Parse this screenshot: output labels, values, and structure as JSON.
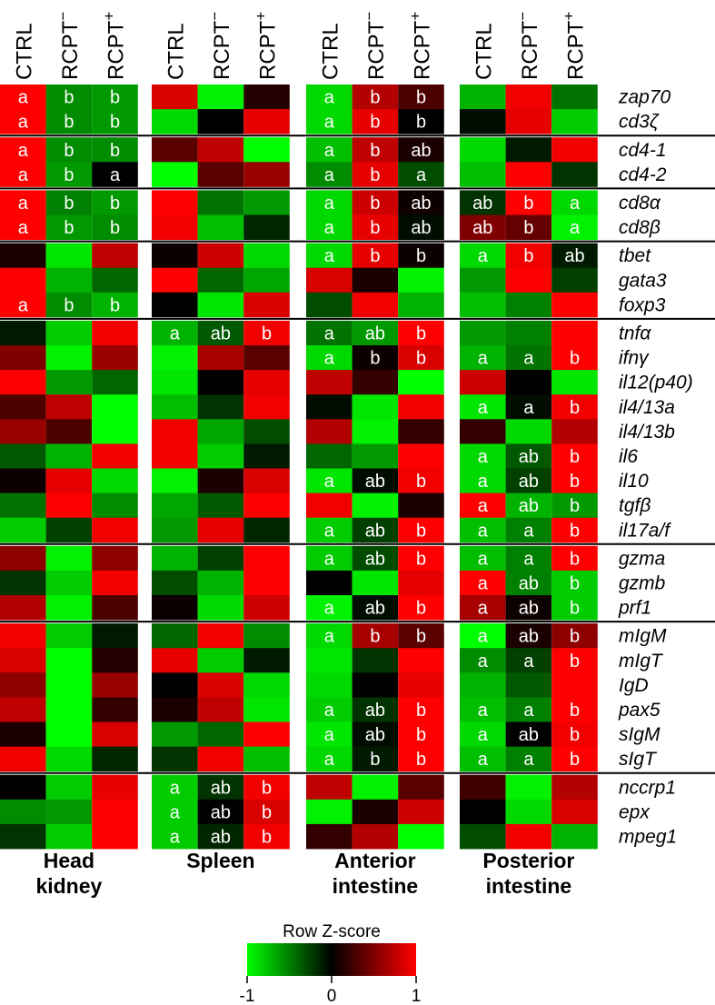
{
  "chart_data": {
    "type": "heatmap",
    "title": "",
    "columns": [
      "CTRL",
      "RCPT-",
      "RCPT+"
    ],
    "column_labels": [
      {
        "text": "CTRL",
        "sup": ""
      },
      {
        "text": "RCPT",
        "sup": "−"
      },
      {
        "text": "RCPT",
        "sup": "+"
      }
    ],
    "tissues": [
      "Head kidney",
      "Spleen",
      "Anterior intestine",
      "Posterior intestine"
    ],
    "tissue_labels": [
      [
        "Head",
        "kidney"
      ],
      [
        "Spleen"
      ],
      [
        "Anterior",
        "intestine"
      ],
      [
        "Posterior",
        "intestine"
      ]
    ],
    "genes": [
      "zap70",
      "cd3ζ",
      "cd4-1",
      "cd4-2",
      "cd8α",
      "cd8β",
      "tbet",
      "gata3",
      "foxp3",
      "tnfα",
      "ifnγ",
      "il12(p40)",
      "il4/13a",
      "il4/13b",
      "il6",
      "il10",
      "tgfβ",
      "il17a/f",
      "gzma",
      "gzmb",
      "prf1",
      "mIgM",
      "mIgT",
      "IgD",
      "pax5",
      "sIgM",
      "sIgT",
      "nccrp1",
      "epx",
      "mpeg1"
    ],
    "groups": [
      2,
      2,
      2,
      3,
      9,
      3,
      6,
      3
    ],
    "zscores": {
      "Head kidney": [
        [
          1,
          -0.55,
          -0.6
        ],
        [
          1,
          -0.55,
          -0.6
        ],
        [
          1,
          -0.55,
          -0.55
        ],
        [
          1,
          -0.6,
          0
        ],
        [
          1,
          -0.5,
          -0.6
        ],
        [
          1,
          -0.6,
          -0.55
        ],
        [
          0.1,
          -0.9,
          0.75
        ],
        [
          1,
          -0.7,
          -0.4
        ],
        [
          1,
          -0.55,
          -0.7
        ],
        [
          -0.1,
          -0.8,
          0.95
        ],
        [
          0.5,
          -0.95,
          0.6
        ],
        [
          1,
          -0.6,
          -0.4
        ],
        [
          0.3,
          0.75,
          -1
        ],
        [
          0.6,
          0.3,
          -1
        ],
        [
          -0.35,
          -0.7,
          0.95
        ],
        [
          0.05,
          0.9,
          -0.85
        ],
        [
          -0.45,
          1,
          -0.55
        ],
        [
          -0.8,
          -0.25,
          0.95
        ],
        [
          0.55,
          -0.95,
          0.55
        ],
        [
          -0.2,
          -0.8,
          0.95
        ],
        [
          0.7,
          -0.95,
          0.3
        ],
        [
          0.95,
          -0.8,
          -0.1
        ],
        [
          0.85,
          -1,
          0.15
        ],
        [
          0.55,
          -1,
          0.6
        ],
        [
          0.75,
          -1,
          0.2
        ],
        [
          0.1,
          -1,
          0.85
        ],
        [
          0.95,
          -0.85,
          -0.15
        ],
        [
          0,
          -0.8,
          0.9
        ],
        [
          -0.55,
          -0.6,
          1
        ],
        [
          -0.2,
          -0.8,
          1
        ]
      ],
      "Spleen": [
        [
          0.85,
          -0.95,
          0.15
        ],
        [
          -0.85,
          0,
          0.9
        ],
        [
          0.35,
          0.75,
          -1
        ],
        [
          -1,
          0.35,
          0.6
        ],
        [
          1,
          -0.45,
          -0.6
        ],
        [
          0.95,
          -0.75,
          -0.15
        ],
        [
          0.05,
          0.8,
          -0.85
        ],
        [
          1,
          -0.4,
          -0.65
        ],
        [
          0,
          -0.9,
          0.85
        ],
        [
          -0.7,
          -0.35,
          0.95
        ],
        [
          -0.95,
          0.65,
          0.35
        ],
        [
          -0.9,
          0,
          0.9
        ],
        [
          -0.75,
          -0.2,
          0.95
        ],
        [
          0.95,
          -0.65,
          -0.3
        ],
        [
          0.95,
          -0.8,
          -0.1
        ],
        [
          -0.95,
          0.1,
          0.85
        ],
        [
          -0.65,
          -0.35,
          1
        ],
        [
          -0.6,
          0.9,
          -0.15
        ],
        [
          -0.7,
          -0.25,
          1
        ],
        [
          -0.3,
          -0.7,
          1
        ],
        [
          0.05,
          -0.85,
          0.8
        ],
        [
          -0.4,
          0.95,
          -0.55
        ],
        [
          0.9,
          -0.8,
          -0.1
        ],
        [
          0,
          0.85,
          -0.85
        ],
        [
          0.1,
          0.75,
          -0.9
        ],
        [
          -0.6,
          -0.4,
          1
        ],
        [
          -0.2,
          0.95,
          -0.75
        ],
        [
          -0.8,
          -0.2,
          0.95
        ],
        [
          -0.8,
          0,
          0.85
        ],
        [
          -0.8,
          -0.15,
          0.95
        ]
      ],
      "Anterior intestine": [
        [
          -0.85,
          0.7,
          0.3
        ],
        [
          -0.85,
          0.9,
          0
        ],
        [
          -0.75,
          0.75,
          0.1
        ],
        [
          -0.55,
          0.9,
          -0.3
        ],
        [
          -0.85,
          0.8,
          0.05
        ],
        [
          -0.85,
          0.9,
          -0.05
        ],
        [
          -0.85,
          0.9,
          0.05
        ],
        [
          0.85,
          0.1,
          -0.95
        ],
        [
          -0.3,
          0.95,
          -0.7
        ],
        [
          -0.45,
          -0.6,
          1
        ],
        [
          -0.85,
          0.05,
          0.85
        ],
        [
          0.75,
          0.2,
          -1
        ],
        [
          -0.05,
          -0.9,
          0.95
        ],
        [
          0.7,
          -0.95,
          0.2
        ],
        [
          -0.4,
          -0.6,
          1
        ],
        [
          -0.9,
          -0.05,
          0.95
        ],
        [
          0.95,
          -0.95,
          0.1
        ],
        [
          -0.8,
          -0.25,
          1
        ],
        [
          -0.8,
          -0.3,
          1
        ],
        [
          0,
          -0.9,
          0.9
        ],
        [
          -0.95,
          -0.05,
          1
        ],
        [
          -0.85,
          0.65,
          0.35
        ],
        [
          -0.9,
          -0.2,
          1
        ],
        [
          -0.85,
          0,
          0.9
        ],
        [
          -0.8,
          -0.2,
          1
        ],
        [
          -0.9,
          -0.05,
          1
        ],
        [
          -0.85,
          -0.1,
          1
        ],
        [
          0.75,
          -0.95,
          0.35
        ],
        [
          -0.95,
          0.1,
          0.8
        ],
        [
          0.2,
          0.7,
          -1
        ]
      ],
      "Posterior intestine": [
        [
          -0.7,
          0.95,
          -0.45
        ],
        [
          -0.05,
          0.9,
          -0.8
        ],
        [
          -0.85,
          -0.1,
          0.95
        ],
        [
          -0.75,
          1,
          -0.2
        ],
        [
          -0.2,
          1,
          -0.85
        ],
        [
          0.5,
          0.4,
          -0.95
        ],
        [
          -0.85,
          0.95,
          -0.1
        ],
        [
          -0.6,
          1,
          -0.25
        ],
        [
          -0.75,
          -0.5,
          1
        ],
        [
          -0.6,
          -0.5,
          1
        ],
        [
          -0.7,
          -0.45,
          1
        ],
        [
          0.8,
          0,
          -0.9
        ],
        [
          -0.9,
          -0.05,
          0.95
        ],
        [
          0.2,
          -0.85,
          0.7
        ],
        [
          -0.85,
          -0.35,
          1
        ],
        [
          -0.85,
          -0.25,
          1
        ],
        [
          1,
          -0.7,
          -0.6
        ],
        [
          -0.75,
          -0.5,
          1
        ],
        [
          -0.75,
          -0.5,
          1
        ],
        [
          1,
          -0.5,
          -0.8
        ],
        [
          0.65,
          0.05,
          -0.8
        ],
        [
          -1,
          0.1,
          0.55
        ],
        [
          -0.55,
          -0.25,
          1
        ],
        [
          -0.7,
          -0.35,
          1
        ],
        [
          -0.75,
          -0.5,
          1
        ],
        [
          -0.85,
          0,
          0.95
        ],
        [
          -0.75,
          -0.5,
          1
        ],
        [
          0.25,
          -0.95,
          0.7
        ],
        [
          0,
          -0.85,
          0.85
        ],
        [
          -0.3,
          0.95,
          -0.7
        ]
      ]
    },
    "letters": {
      "Head kidney": [
        [
          "a",
          "b",
          "b"
        ],
        [
          "a",
          "b",
          "b"
        ],
        [
          "a",
          "b",
          "b"
        ],
        [
          "a",
          "b",
          "a"
        ],
        [
          "a",
          "b",
          "b"
        ],
        [
          "a",
          "b",
          "b"
        ],
        [
          "",
          "",
          ""
        ],
        [
          "",
          "",
          ""
        ],
        [
          "a",
          "b",
          "b"
        ],
        [
          "",
          "",
          ""
        ],
        [
          "",
          "",
          ""
        ],
        [
          "",
          "",
          ""
        ],
        [
          "",
          "",
          ""
        ],
        [
          "",
          "",
          ""
        ],
        [
          "",
          "",
          ""
        ],
        [
          "",
          "",
          ""
        ],
        [
          "",
          "",
          ""
        ],
        [
          "",
          "",
          ""
        ],
        [
          "",
          "",
          ""
        ],
        [
          "",
          "",
          ""
        ],
        [
          "",
          "",
          ""
        ],
        [
          "",
          "",
          ""
        ],
        [
          "",
          "",
          ""
        ],
        [
          "",
          "",
          ""
        ],
        [
          "",
          "",
          ""
        ],
        [
          "",
          "",
          ""
        ],
        [
          "",
          "",
          ""
        ],
        [
          "",
          "",
          ""
        ],
        [
          "",
          "",
          ""
        ],
        [
          "",
          "",
          ""
        ]
      ],
      "Spleen": [
        [
          "",
          "",
          ""
        ],
        [
          "",
          "",
          ""
        ],
        [
          "",
          "",
          ""
        ],
        [
          "",
          "",
          ""
        ],
        [
          "",
          "",
          ""
        ],
        [
          "",
          "",
          ""
        ],
        [
          "",
          "",
          ""
        ],
        [
          "",
          "",
          ""
        ],
        [
          "",
          "",
          ""
        ],
        [
          "a",
          "ab",
          "b"
        ],
        [
          "",
          "",
          ""
        ],
        [
          "",
          "",
          ""
        ],
        [
          "",
          "",
          ""
        ],
        [
          "",
          "",
          ""
        ],
        [
          "",
          "",
          ""
        ],
        [
          "",
          "",
          ""
        ],
        [
          "",
          "",
          ""
        ],
        [
          "",
          "",
          ""
        ],
        [
          "",
          "",
          ""
        ],
        [
          "",
          "",
          ""
        ],
        [
          "",
          "",
          ""
        ],
        [
          "",
          "",
          ""
        ],
        [
          "",
          "",
          ""
        ],
        [
          "",
          "",
          ""
        ],
        [
          "",
          "",
          ""
        ],
        [
          "",
          "",
          ""
        ],
        [
          "",
          "",
          ""
        ],
        [
          "a",
          "ab",
          "b"
        ],
        [
          "a",
          "ab",
          "b"
        ],
        [
          "a",
          "ab",
          "b"
        ]
      ],
      "Anterior intestine": [
        [
          "a",
          "b",
          "b"
        ],
        [
          "a",
          "b",
          "b"
        ],
        [
          "a",
          "b",
          "ab"
        ],
        [
          "a",
          "b",
          "a"
        ],
        [
          "a",
          "b",
          "ab"
        ],
        [
          "a",
          "b",
          "ab"
        ],
        [
          "a",
          "b",
          "b"
        ],
        [
          "",
          "",
          ""
        ],
        [
          "",
          "",
          ""
        ],
        [
          "a",
          "ab",
          "b"
        ],
        [
          "a",
          "b",
          "b"
        ],
        [
          "",
          "",
          ""
        ],
        [
          "",
          "",
          ""
        ],
        [
          "",
          "",
          ""
        ],
        [
          "",
          "",
          ""
        ],
        [
          "a",
          "ab",
          "b"
        ],
        [
          "",
          "",
          ""
        ],
        [
          "a",
          "ab",
          "b"
        ],
        [
          "a",
          "ab",
          "b"
        ],
        [
          "",
          "",
          ""
        ],
        [
          "a",
          "ab",
          "b"
        ],
        [
          "a",
          "b",
          "b"
        ],
        [
          "",
          "",
          ""
        ],
        [
          "",
          "",
          ""
        ],
        [
          "a",
          "ab",
          "b"
        ],
        [
          "a",
          "ab",
          "b"
        ],
        [
          "a",
          "b",
          "b"
        ],
        [
          "",
          "",
          ""
        ],
        [
          "",
          "",
          ""
        ],
        [
          "",
          "",
          ""
        ]
      ],
      "Posterior intestine": [
        [
          "",
          "",
          ""
        ],
        [
          "",
          "",
          ""
        ],
        [
          "",
          "",
          ""
        ],
        [
          "",
          "",
          ""
        ],
        [
          "ab",
          "b",
          "a"
        ],
        [
          "ab",
          "b",
          "a"
        ],
        [
          "a",
          "b",
          "ab"
        ],
        [
          "",
          "",
          ""
        ],
        [
          "",
          "",
          ""
        ],
        [
          "",
          "",
          ""
        ],
        [
          "a",
          "a",
          "b"
        ],
        [
          "",
          "",
          ""
        ],
        [
          "a",
          "a",
          "b"
        ],
        [
          "",
          "",
          ""
        ],
        [
          "a",
          "ab",
          "b"
        ],
        [
          "a",
          "ab",
          "b"
        ],
        [
          "a",
          "ab",
          "b"
        ],
        [
          "a",
          "a",
          "b"
        ],
        [
          "a",
          "a",
          "b"
        ],
        [
          "a",
          "ab",
          "b"
        ],
        [
          "a",
          "ab",
          "b"
        ],
        [
          "a",
          "ab",
          "b"
        ],
        [
          "a",
          "a",
          "b"
        ],
        [
          "",
          "",
          ""
        ],
        [
          "a",
          "a",
          "b"
        ],
        [
          "a",
          "ab",
          "b"
        ],
        [
          "a",
          "a",
          "b"
        ],
        [
          "",
          "",
          ""
        ],
        [
          "",
          "",
          ""
        ],
        [
          "",
          "",
          ""
        ]
      ]
    },
    "color_scale": {
      "title": "Row Z-score",
      "min": -1,
      "mid": 0,
      "max": 1,
      "tick_labels": [
        "-1",
        "0",
        "1"
      ],
      "low_color": "#00ff00",
      "mid_color": "#000000",
      "high_color": "#ff0000"
    }
  }
}
